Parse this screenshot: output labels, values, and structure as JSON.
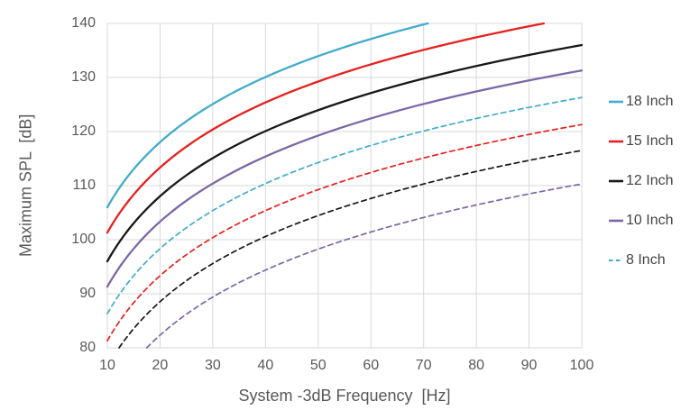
{
  "chart_data": {
    "type": "line",
    "title": "",
    "x_axis": {
      "label": "System -3dB Frequency  [Hz]",
      "min": 10,
      "max": 100,
      "ticks": [
        10,
        20,
        30,
        40,
        50,
        60,
        70,
        80,
        90,
        100
      ]
    },
    "y_axis": {
      "label": "Maximum SPL  [dB]",
      "min": 80,
      "max": 140,
      "ticks": [
        80,
        90,
        100,
        110,
        120,
        130,
        140
      ]
    },
    "grid": true,
    "legend_position": "right",
    "model": {
      "description": "Each curve follows SPL(f) = spl_at_10hz + slope_db_per_decade * log10(f/10), clipped to the axis ranges",
      "slope_db_per_decade": 40
    },
    "series": [
      {
        "id": "18-inch",
        "label": "18 Inch",
        "in_legend": true,
        "color": "#41ACCB",
        "dashed": false,
        "spl_at_10hz": 106.0,
        "spl_at_ticks": [
          106.0,
          118.0,
          125.1,
          130.1,
          134.0,
          137.1,
          139.8,
          null,
          null,
          null
        ]
      },
      {
        "id": "15-inch",
        "label": "15 Inch",
        "in_legend": true,
        "color": "#E6211E",
        "dashed": false,
        "spl_at_10hz": 101.3,
        "spl_at_ticks": [
          101.3,
          113.3,
          120.4,
          125.4,
          129.3,
          132.4,
          135.1,
          137.4,
          139.5,
          null
        ]
      },
      {
        "id": "12-inch",
        "label": "12 Inch",
        "in_legend": true,
        "color": "#181818",
        "dashed": false,
        "spl_at_10hz": 96.0,
        "spl_at_ticks": [
          96.0,
          108.0,
          115.1,
          120.1,
          124.0,
          127.1,
          129.8,
          132.1,
          134.2,
          136.0
        ]
      },
      {
        "id": "10-inch",
        "label": "10 Inch",
        "in_legend": true,
        "color": "#7A68A6",
        "dashed": false,
        "spl_at_10hz": 91.3,
        "spl_at_ticks": [
          91.3,
          103.3,
          110.4,
          115.4,
          119.3,
          122.4,
          125.1,
          127.4,
          129.5,
          131.3
        ]
      },
      {
        "id": "8-inch",
        "label": "8 Inch",
        "in_legend": true,
        "color": "#41ACCB",
        "dashed": true,
        "spl_at_10hz": 86.3,
        "spl_at_ticks": [
          86.3,
          98.3,
          105.4,
          110.4,
          114.3,
          117.4,
          120.1,
          122.4,
          124.5,
          126.3
        ]
      },
      {
        "id": "unlabeled-dashed-red",
        "label": "",
        "in_legend": false,
        "color": "#E6211E",
        "dashed": true,
        "spl_at_10hz": 81.3,
        "spl_at_ticks": [
          81.3,
          93.3,
          100.4,
          105.4,
          109.3,
          112.4,
          115.1,
          117.4,
          119.5,
          121.3
        ]
      },
      {
        "id": "unlabeled-dashed-black",
        "label": "",
        "in_legend": false,
        "color": "#181818",
        "dashed": true,
        "spl_at_10hz": 76.5,
        "spl_at_ticks": [
          null,
          88.5,
          95.6,
          100.6,
          104.5,
          107.6,
          110.3,
          112.6,
          114.7,
          116.5
        ]
      },
      {
        "id": "unlabeled-dashed-purple",
        "label": "",
        "in_legend": false,
        "color": "#7A68A6",
        "dashed": true,
        "spl_at_10hz": 70.3,
        "spl_at_ticks": [
          null,
          82.3,
          89.4,
          94.4,
          98.3,
          101.4,
          104.1,
          106.4,
          108.5,
          110.3
        ]
      }
    ],
    "style": {
      "grid_color": "#D9D9D9",
      "axis_text_color": "#595959",
      "legend_text_color": "#444444",
      "background": "#FFFFFF"
    }
  }
}
